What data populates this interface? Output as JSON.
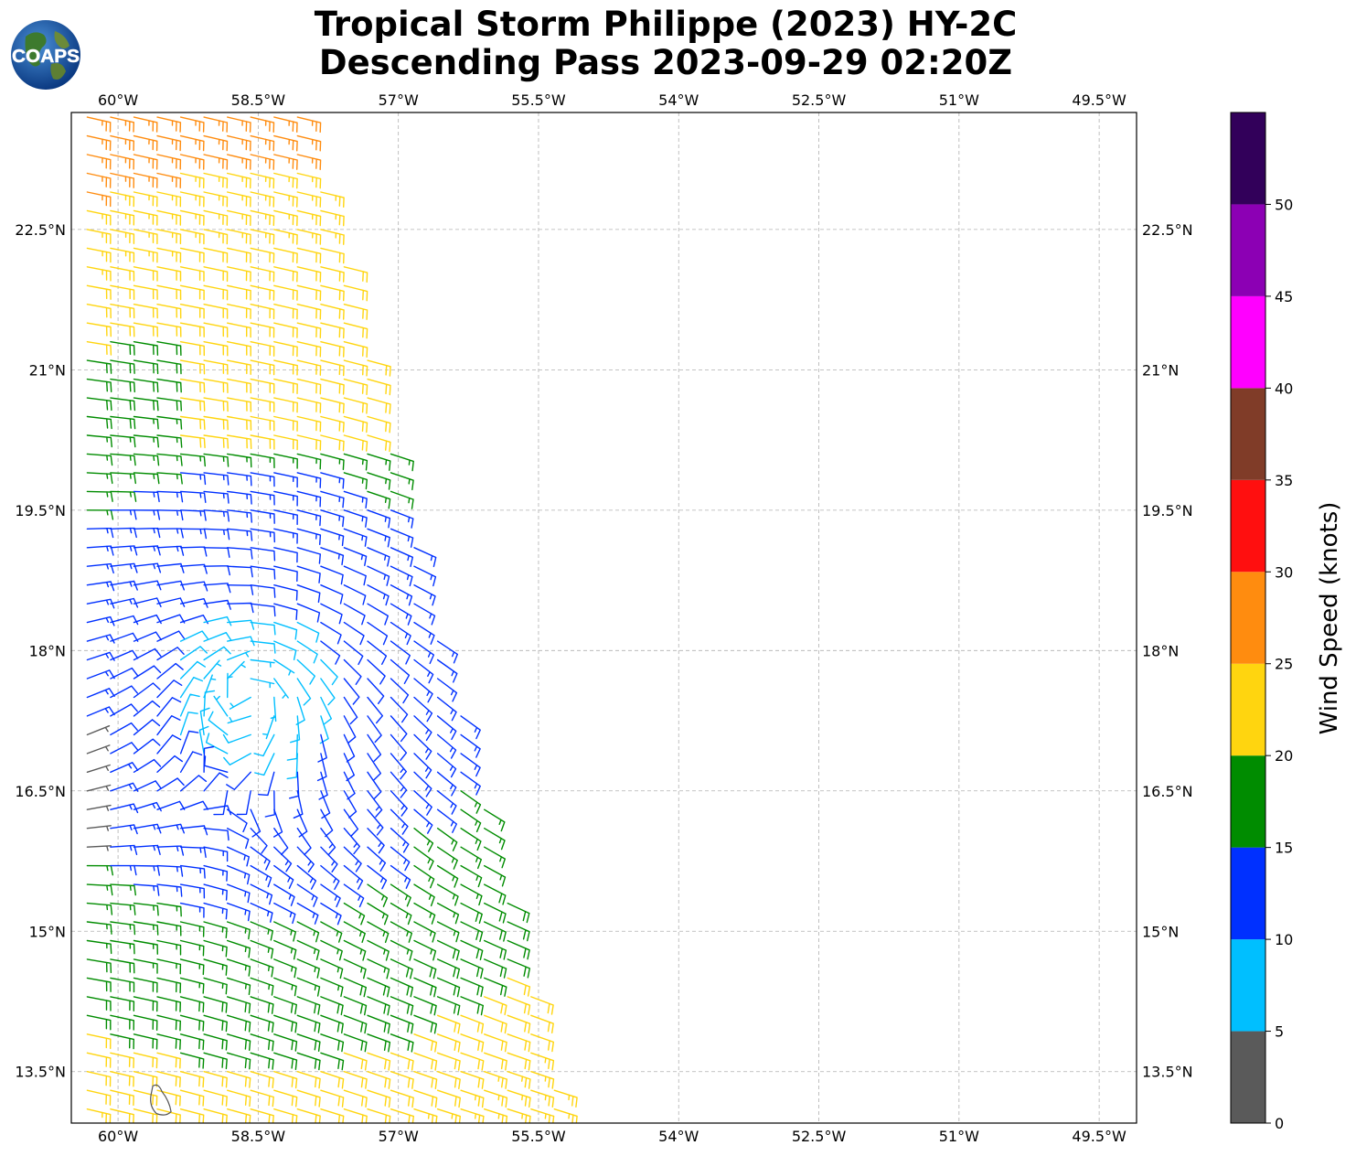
{
  "title": {
    "line1": "Tropical Storm Philippe (2023) HY-2C",
    "line2": "Descending Pass 2023-09-29 02:20Z"
  },
  "logo": {
    "text": "COAPS",
    "icon": "globe-logo-icon"
  },
  "map": {
    "projection": "plate-carree",
    "lon_range": [
      -60.5,
      -49.1
    ],
    "lat_range": [
      12.95,
      23.75
    ],
    "gridlines": true,
    "lon_ticks": [
      {
        "value": -60.0,
        "label": "60°W"
      },
      {
        "value": -58.5,
        "label": "58.5°W"
      },
      {
        "value": -57.0,
        "label": "57°W"
      },
      {
        "value": -55.5,
        "label": "55.5°W"
      },
      {
        "value": -54.0,
        "label": "54°W"
      },
      {
        "value": -52.5,
        "label": "52.5°W"
      },
      {
        "value": -51.0,
        "label": "51°W"
      },
      {
        "value": -49.5,
        "label": "49.5°W"
      }
    ],
    "lat_ticks": [
      {
        "value": 22.5,
        "label": "22.5°N"
      },
      {
        "value": 21.0,
        "label": "21°N"
      },
      {
        "value": 19.5,
        "label": "19.5°N"
      },
      {
        "value": 18.0,
        "label": "18°N"
      },
      {
        "value": 16.5,
        "label": "16.5°N"
      },
      {
        "value": 15.0,
        "label": "15°N"
      },
      {
        "value": 13.5,
        "label": "13.5°N"
      }
    ],
    "storm_center": {
      "lon": -58.6,
      "lat": 17.6
    },
    "swath": {
      "west_edge": -60.6,
      "east_edge_north": -58.0,
      "east_edge_south": -55.2,
      "north_lat": 23.75,
      "south_lat": 12.95
    },
    "coastline_color": "#555555",
    "island": {
      "name": "Barbados",
      "lon": -59.55,
      "lat": 13.15
    }
  },
  "colorbar": {
    "label": "Wind Speed (knots)",
    "ticks": [
      "0",
      "5",
      "10",
      "15",
      "20",
      "25",
      "30",
      "35",
      "40",
      "45",
      "50"
    ],
    "bins": [
      {
        "min": 0,
        "max": 5,
        "color": "#5a5a5a"
      },
      {
        "min": 5,
        "max": 10,
        "color": "#00bfff"
      },
      {
        "min": 10,
        "max": 15,
        "color": "#0030ff"
      },
      {
        "min": 15,
        "max": 20,
        "color": "#008c00"
      },
      {
        "min": 20,
        "max": 25,
        "color": "#ffd50f"
      },
      {
        "min": 25,
        "max": 30,
        "color": "#ff8c0f"
      },
      {
        "min": 30,
        "max": 35,
        "color": "#ff0f0f"
      },
      {
        "min": 35,
        "max": 40,
        "color": "#803c28"
      },
      {
        "min": 40,
        "max": 45,
        "color": "#ff00ff"
      },
      {
        "min": 45,
        "max": 50,
        "color": "#8c00b4"
      },
      {
        "min": 50,
        "max": 55,
        "color": "#32005a"
      }
    ],
    "range": [
      0,
      55
    ]
  }
}
